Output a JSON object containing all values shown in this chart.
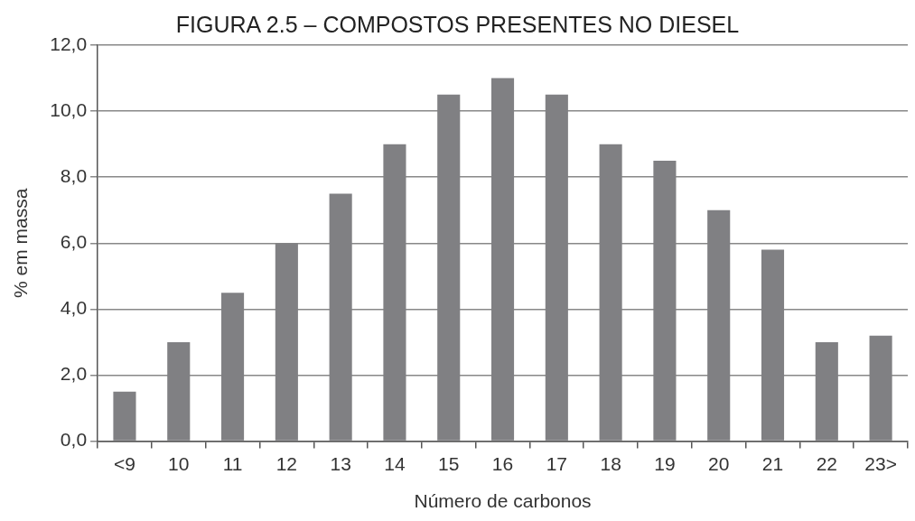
{
  "chart_data": {
    "type": "bar",
    "title": "FIGURA 2.5 – COMPOSTOS PRESENTES NO DIESEL",
    "xlabel": "Número de carbonos",
    "ylabel": "% em massa",
    "categories": [
      "<9",
      "10",
      "11",
      "12",
      "13",
      "14",
      "15",
      "16",
      "17",
      "18",
      "19",
      "20",
      "21",
      "22",
      "23>"
    ],
    "values": [
      1.5,
      3.0,
      4.5,
      6.0,
      7.5,
      9.0,
      10.5,
      11.0,
      10.5,
      9.0,
      8.5,
      7.0,
      5.8,
      3.0,
      3.2
    ],
    "color": "#808083",
    "ylim": [
      0,
      12
    ],
    "yticks": [
      {
        "value": 0,
        "label": "0,0"
      },
      {
        "value": 2,
        "label": "2,0"
      },
      {
        "value": 4,
        "label": "4,0"
      },
      {
        "value": 6,
        "label": "6,0"
      },
      {
        "value": 8,
        "label": "8,0"
      },
      {
        "value": 10,
        "label": "10,0"
      },
      {
        "value": 12,
        "label": "12,0"
      }
    ],
    "grid": "y",
    "legend": false
  }
}
